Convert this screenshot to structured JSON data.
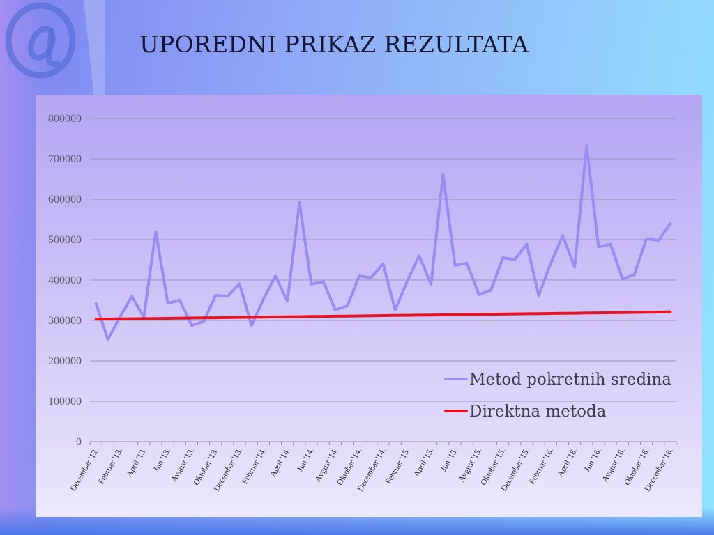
{
  "slide": {
    "title": "UPOREDNI PRIKAZ REZULTATA",
    "colors": {
      "background_left": "#7d83ef",
      "background_right": "#8fe4fd",
      "logo": "#5a6fd8"
    },
    "logo_icon": "at-sign-icon"
  },
  "chart_data": {
    "type": "line",
    "title": "",
    "xlabel": "",
    "ylabel": "",
    "ylim": [
      0,
      800000
    ],
    "yticks": [
      0,
      100000,
      200000,
      300000,
      400000,
      500000,
      600000,
      700000,
      800000
    ],
    "grid": true,
    "legend_position": "bottom-right",
    "x": [
      "Decembar '12.",
      "Januar '13.",
      "Februar '13.",
      "Mart '13.",
      "April '13.",
      "Maj '13.",
      "Jun '13.",
      "Jul '13.",
      "Avgust '13.",
      "Septembar '13.",
      "Oktobar '13.",
      "Novembar '13.",
      "Decembar '13.",
      "Januar '14.",
      "Februar '14.",
      "Mart '14.",
      "April '14.",
      "Maj '14.",
      "Jun '14.",
      "Jul '14.",
      "Avgust '14.",
      "Septembar '14.",
      "Oktobar '14.",
      "Novembar '14.",
      "Decembar '14.",
      "Januar '15.",
      "Februar '15.",
      "Mart '15.",
      "April '15.",
      "Maj '15.",
      "Jun '15.",
      "Jul '15.",
      "Avgust '15.",
      "Septembar '15.",
      "Oktobar '15.",
      "Novembar '15.",
      "Decembar '15.",
      "Januar '16.",
      "Februar '16.",
      "Mart '16.",
      "April '16.",
      "Maj '16.",
      "Jun '16.",
      "Jul '16.",
      "Avgust '16.",
      "Septembar '16.",
      "Oktobar '16.",
      "Novembar '16.",
      "Decembar '16."
    ],
    "xtick_labels": [
      "Decembar '12.",
      "Februar '13.",
      "April '13.",
      "Jun '13.",
      "Avgust '13.",
      "Oktobar '13.",
      "Decembar '13.",
      "Februar '14.",
      "April '14.",
      "Jun '14.",
      "Avgust '14.",
      "Oktobar '14.",
      "Decembar '14.",
      "Februar '15.",
      "April '15.",
      "Jun '15.",
      "Avgust '15.",
      "Oktobar '15.",
      "Decembar '15.",
      "Februar '16.",
      "April '16.",
      "Jun '16.",
      "Avgust '16.",
      "Oktobar '16.",
      "Decembar '16."
    ],
    "series": [
      {
        "name": "Metod pokretnih sredina",
        "color": "#9b8cf0",
        "values": [
          342000,
          253000,
          308000,
          360000,
          308000,
          520000,
          343000,
          350000,
          288000,
          297000,
          362000,
          360000,
          391000,
          288000,
          353000,
          410000,
          348000,
          592000,
          390000,
          396000,
          326000,
          336000,
          410000,
          406000,
          440000,
          326000,
          396000,
          460000,
          390000,
          662000,
          436000,
          442000,
          364000,
          375000,
          455000,
          451000,
          489000,
          362000,
          441000,
          510000,
          432000,
          733000,
          482000,
          489000,
          402000,
          414000,
          502000,
          498000,
          540000
        ]
      },
      {
        "name": "Direktna metoda",
        "color": "#e41422",
        "values": [
          303000,
          303375,
          303750,
          304125,
          304500,
          304875,
          305250,
          305625,
          306000,
          306375,
          306750,
          307125,
          307500,
          307875,
          308250,
          308625,
          309000,
          309375,
          309750,
          310125,
          310500,
          310875,
          311250,
          311625,
          312000,
          312375,
          312750,
          313125,
          313500,
          313875,
          314250,
          314625,
          315000,
          315375,
          315750,
          316125,
          316500,
          316875,
          317250,
          317625,
          318000,
          318375,
          318750,
          319125,
          319500,
          319875,
          320250,
          320625,
          321000
        ]
      }
    ]
  }
}
